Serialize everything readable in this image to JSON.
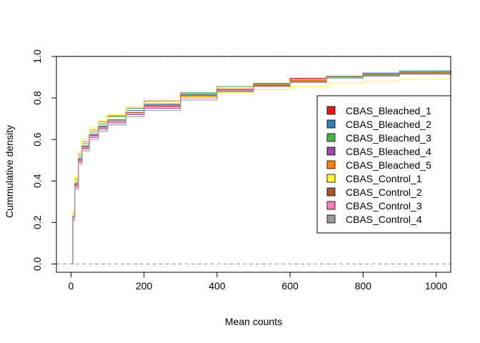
{
  "chart_data": {
    "type": "line",
    "title": "",
    "xlabel": "Mean counts",
    "ylabel": "Cummulative density",
    "xlim": [
      -40,
      1040
    ],
    "ylim": [
      -0.04,
      1.0
    ],
    "x_ticks": [
      0,
      200,
      400,
      600,
      800,
      1000
    ],
    "x_tick_labels": [
      "0",
      "200",
      "400",
      "600",
      "800",
      "1000"
    ],
    "y_ticks": [
      0.0,
      0.2,
      0.4,
      0.6,
      0.8,
      1.0
    ],
    "y_tick_labels": [
      "0.0",
      "0.2",
      "0.4",
      "0.6",
      "0.8",
      "1.0"
    ],
    "reference_lines": [
      0.0,
      1.0
    ],
    "legend_position": "right",
    "grid": false,
    "series": [
      {
        "name": "CBAS_Bleached_1",
        "color": "#e41a1c",
        "x": [
          0,
          5,
          10,
          20,
          30,
          50,
          75,
          100,
          150,
          200,
          300,
          400,
          500,
          600,
          700,
          800,
          900,
          1040
        ],
        "y": [
          0.0,
          0.22,
          0.38,
          0.5,
          0.56,
          0.62,
          0.66,
          0.69,
          0.73,
          0.76,
          0.81,
          0.845,
          0.87,
          0.895,
          0.905,
          0.915,
          0.92,
          0.93
        ]
      },
      {
        "name": "CBAS_Bleached_2",
        "color": "#377eb8",
        "x": [
          0,
          5,
          10,
          20,
          30,
          50,
          75,
          100,
          150,
          200,
          300,
          400,
          500,
          600,
          700,
          800,
          900,
          1040
        ],
        "y": [
          0.0,
          0.23,
          0.39,
          0.51,
          0.57,
          0.625,
          0.665,
          0.695,
          0.74,
          0.77,
          0.815,
          0.845,
          0.865,
          0.885,
          0.905,
          0.92,
          0.93,
          0.94
        ]
      },
      {
        "name": "CBAS_Bleached_3",
        "color": "#4daf4a",
        "x": [
          0,
          5,
          10,
          20,
          30,
          50,
          75,
          100,
          150,
          200,
          300,
          400,
          500,
          600,
          700,
          800,
          900,
          1040
        ],
        "y": [
          0.0,
          0.24,
          0.4,
          0.52,
          0.58,
          0.635,
          0.675,
          0.71,
          0.75,
          0.785,
          0.825,
          0.855,
          0.87,
          0.89,
          0.905,
          0.915,
          0.925,
          0.935
        ]
      },
      {
        "name": "CBAS_Bleached_4",
        "color": "#984ea3",
        "x": [
          0,
          5,
          10,
          20,
          30,
          50,
          75,
          100,
          150,
          200,
          300,
          400,
          500,
          600,
          700,
          800,
          900,
          1040
        ],
        "y": [
          0.0,
          0.22,
          0.37,
          0.49,
          0.555,
          0.61,
          0.65,
          0.68,
          0.72,
          0.75,
          0.8,
          0.835,
          0.86,
          0.88,
          0.895,
          0.905,
          0.915,
          0.925
        ]
      },
      {
        "name": "CBAS_Bleached_5",
        "color": "#ff7f00",
        "x": [
          0,
          5,
          10,
          20,
          30,
          50,
          75,
          100,
          150,
          200,
          300,
          400,
          500,
          600,
          700,
          800,
          900,
          1040
        ],
        "y": [
          0.0,
          0.25,
          0.41,
          0.53,
          0.59,
          0.645,
          0.685,
          0.715,
          0.755,
          0.785,
          0.82,
          0.845,
          0.865,
          0.885,
          0.9,
          0.91,
          0.92,
          0.93
        ]
      },
      {
        "name": "CBAS_Control_1",
        "color": "#ffff33",
        "x": [
          0,
          5,
          10,
          20,
          30,
          50,
          75,
          100,
          150,
          200,
          300,
          400,
          500,
          600,
          700,
          800,
          900,
          1040
        ],
        "y": [
          0.0,
          0.26,
          0.42,
          0.54,
          0.6,
          0.655,
          0.69,
          0.72,
          0.755,
          0.775,
          0.805,
          0.825,
          0.84,
          0.855,
          0.87,
          0.88,
          0.89,
          0.9
        ]
      },
      {
        "name": "CBAS_Control_2",
        "color": "#a65628",
        "x": [
          0,
          5,
          10,
          20,
          30,
          50,
          75,
          100,
          150,
          200,
          300,
          400,
          500,
          600,
          700,
          800,
          900,
          1040
        ],
        "y": [
          0.0,
          0.23,
          0.385,
          0.505,
          0.565,
          0.62,
          0.66,
          0.69,
          0.73,
          0.765,
          0.81,
          0.84,
          0.86,
          0.88,
          0.9,
          0.91,
          0.92,
          0.93
        ]
      },
      {
        "name": "CBAS_Control_3",
        "color": "#f781bf",
        "x": [
          0,
          5,
          10,
          20,
          30,
          50,
          75,
          100,
          150,
          200,
          300,
          400,
          500,
          600,
          700,
          800,
          900,
          1040
        ],
        "y": [
          0.0,
          0.22,
          0.375,
          0.495,
          0.56,
          0.615,
          0.655,
          0.685,
          0.725,
          0.755,
          0.8,
          0.83,
          0.855,
          0.875,
          0.895,
          0.905,
          0.915,
          0.925
        ]
      },
      {
        "name": "CBAS_Control_4",
        "color": "#999999",
        "x": [
          0,
          5,
          10,
          20,
          30,
          50,
          75,
          100,
          150,
          200,
          300,
          400,
          500,
          600,
          700,
          800,
          900,
          1040
        ],
        "y": [
          0.0,
          0.21,
          0.36,
          0.48,
          0.545,
          0.6,
          0.64,
          0.67,
          0.71,
          0.74,
          0.79,
          0.83,
          0.855,
          0.875,
          0.895,
          0.905,
          0.915,
          0.925
        ]
      }
    ]
  },
  "colors": {
    "axis": "#000000",
    "reference_line": "#a0a0a0",
    "legend_border": "#000000",
    "background": "#ffffff"
  }
}
